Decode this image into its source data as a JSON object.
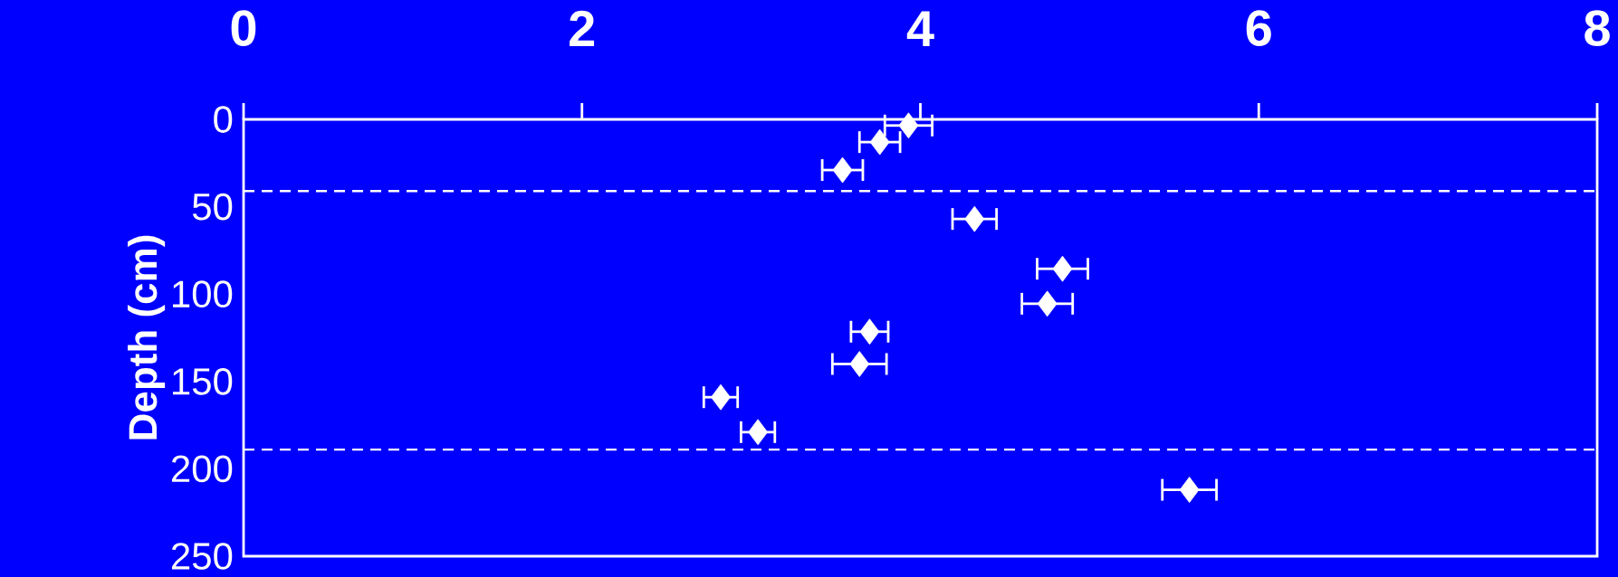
{
  "chart_data": {
    "type": "scatter",
    "ylabel": "Depth (cm)",
    "x": [
      3.93,
      3.76,
      3.54,
      4.32,
      4.84,
      4.75,
      3.7,
      3.64,
      2.82,
      3.04,
      5.59
    ],
    "values": [
      3.5,
      13,
      29,
      57,
      85.5,
      105.5,
      121.5,
      140,
      159,
      179,
      212
    ],
    "xerrors": [
      0.14,
      0.12,
      0.12,
      0.13,
      0.15,
      0.15,
      0.11,
      0.16,
      0.1,
      0.1,
      0.16
    ],
    "color": "#ffffff",
    "marker": "diamond",
    "xlim": [
      0,
      8
    ],
    "xticks": [
      0,
      2,
      4,
      6,
      8
    ],
    "ylim": [
      250,
      0
    ],
    "yticks": [
      0,
      50,
      100,
      150,
      200,
      250
    ],
    "ref_lines": [
      {
        "axis": "y",
        "value": 41,
        "color": "#ffffff",
        "line_style": "dashed"
      },
      {
        "axis": "y",
        "value": 189,
        "color": "#ffffff",
        "line_style": "dashed"
      }
    ],
    "grid": false
  }
}
